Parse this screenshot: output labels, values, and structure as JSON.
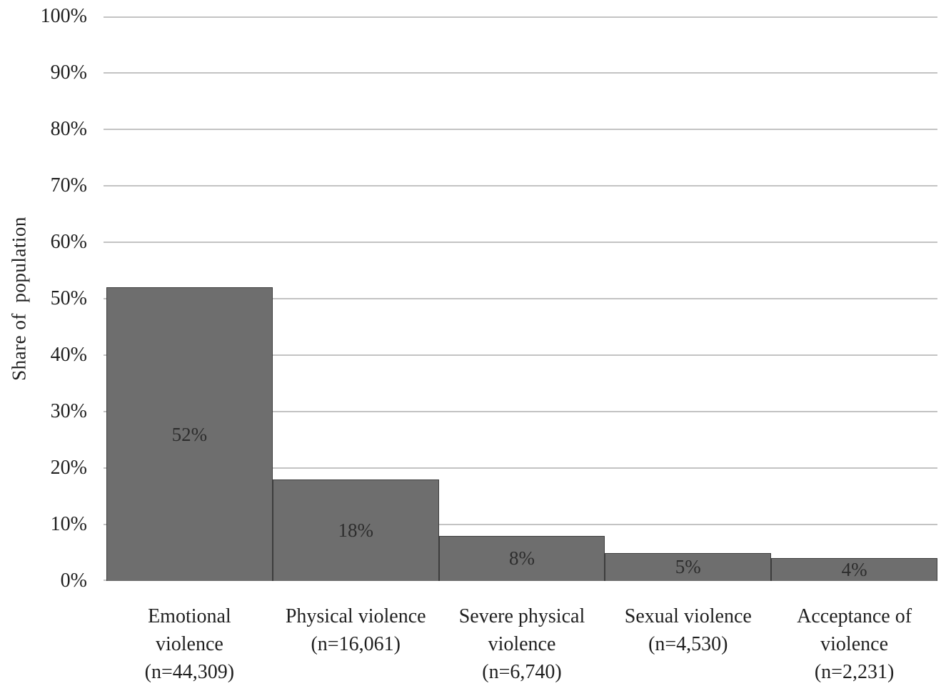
{
  "chart_data": {
    "type": "bar",
    "title": "",
    "xlabel": "",
    "ylabel": "Share of  population",
    "ylim": [
      0,
      100
    ],
    "ytick_step": 10,
    "ytick_labels": [
      "0%",
      "10%",
      "20%",
      "30%",
      "40%",
      "50%",
      "60%",
      "70%",
      "80%",
      "90%",
      "100%"
    ],
    "grid": "horizontal gridlines at every 10%",
    "legend_position": "none",
    "categories": [
      "Emotional violence (n=44,309)",
      "Physical violence (n=16,061)",
      "Severe physical violence (n=6,740)",
      "Sexual violence (n=4,530)",
      "Acceptance of violence (n=2,231)"
    ],
    "category_lines": [
      [
        "Emotional",
        "violence",
        "(n=44,309)"
      ],
      [
        "Physical violence",
        "(n=16,061)"
      ],
      [
        "Severe physical",
        "violence",
        "(n=6,740)"
      ],
      [
        "Sexual violence",
        "(n=4,530)"
      ],
      [
        "Acceptance of",
        "violence",
        "(n=2,231)"
      ]
    ],
    "values": [
      52,
      18,
      8,
      5,
      4
    ],
    "value_labels": [
      "52%",
      "18%",
      "8%",
      "5%",
      "4%"
    ],
    "sample_sizes": [
      44309,
      16061,
      6740,
      4530,
      2231
    ],
    "colors": {
      "bar_fill": "#6e6e6e",
      "bar_border": "#3d3d3d",
      "gridline": "#c3c3c3",
      "text": "#1f1f1f",
      "value_label_text": "#2d2d2d",
      "background": "#ffffff"
    }
  }
}
